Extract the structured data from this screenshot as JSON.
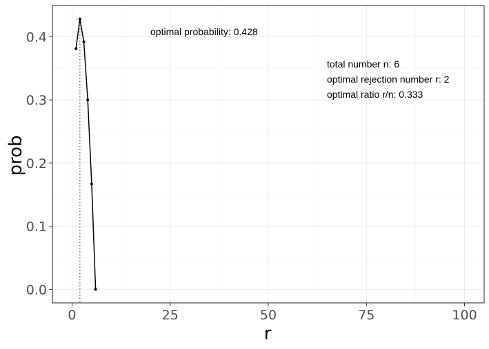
{
  "chart_data": {
    "type": "line",
    "title": "",
    "xlabel": "r",
    "ylabel": "prob",
    "xlim": [
      -5,
      105
    ],
    "ylim": [
      -0.0214,
      0.4494
    ],
    "xticks": [
      0,
      25,
      50,
      75,
      100
    ],
    "xtick_labels": [
      "0",
      "25",
      "50",
      "75",
      "100"
    ],
    "yticks": [
      0.0,
      0.1,
      0.2,
      0.3,
      0.4
    ],
    "ytick_labels": [
      "0.0",
      "0.1",
      "0.2",
      "0.3",
      "0.4"
    ],
    "grid": true,
    "legend": "none",
    "series": [
      {
        "x": [
          1,
          2,
          3,
          4,
          5,
          6
        ],
        "y": [
          0.381,
          0.428,
          0.392,
          0.3,
          0.167,
          0.0
        ]
      }
    ],
    "optimal_r": 2,
    "optimal_probability": 0.428,
    "annotations": {
      "probability_text": "optimal probability:  0.428",
      "total_text": "total number n: 6",
      "rejection_text": "optimal rejection number r: 2",
      "ratio_text": "optimal ratio r/n: 0.333"
    },
    "colors": {
      "line": "#000000",
      "panel_border": "#333333",
      "grid_major": "#ebebeb",
      "grid_minor": "#f5f5f5",
      "tick_label": "#4d4d4d"
    }
  }
}
